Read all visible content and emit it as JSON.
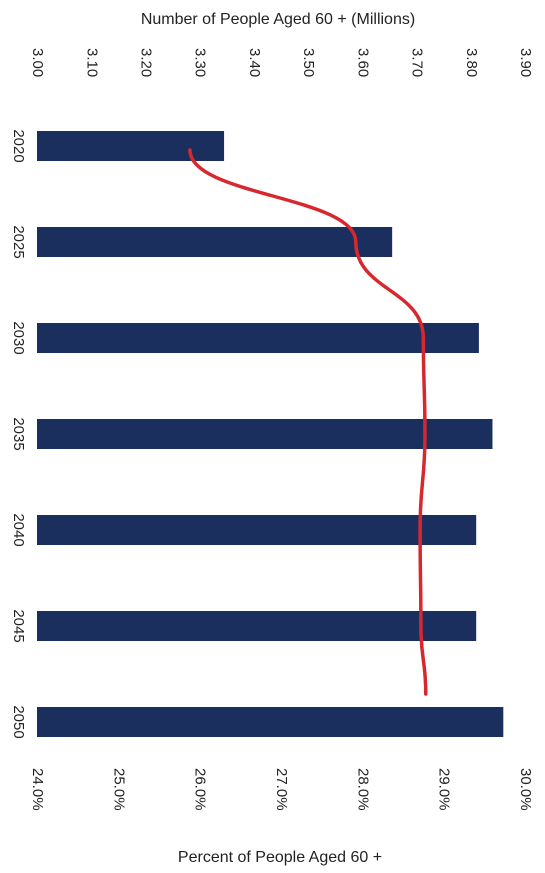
{
  "chart_data": {
    "type": "bar",
    "orientation": "rotated-90-clockwise",
    "categories": [
      "2020",
      "2025",
      "2030",
      "2035",
      "2040",
      "2045",
      "2050"
    ],
    "series": [
      {
        "kind": "bar",
        "axis": "top",
        "color": "#1b2f5e",
        "values": [
          3.345,
          3.655,
          3.815,
          3.84,
          3.81,
          3.81,
          3.86
        ]
      },
      {
        "kind": "line",
        "axis": "bottom",
        "color": "#d7282f",
        "values": [
          0.2588,
          0.2792,
          0.2875,
          0.2877,
          0.2871,
          0.2872,
          0.2878
        ]
      }
    ],
    "top_axis": {
      "title": "Number of People Aged 60 + (Millions)",
      "min": 3.0,
      "max": 3.9,
      "ticks": [
        "3.00",
        "3.10",
        "3.20",
        "3.30",
        "3.40",
        "3.50",
        "3.60",
        "3.70",
        "3.80",
        "3.90"
      ]
    },
    "bottom_axis": {
      "title": "Percent of People Aged 60 +",
      "min": 0.24,
      "max": 0.3,
      "ticks": [
        "24.0%",
        "25.0%",
        "26.0%",
        "27.0%",
        "28.0%",
        "29.0%",
        "30.0%"
      ]
    },
    "grid": false,
    "legend": "none"
  }
}
